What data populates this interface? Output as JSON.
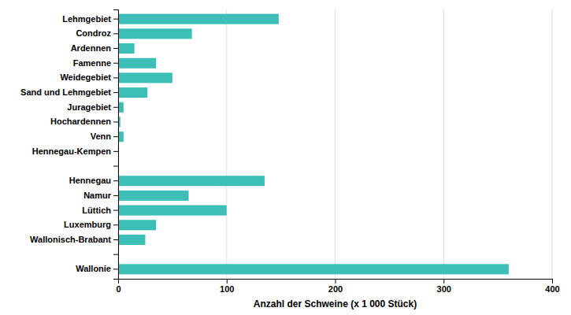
{
  "chart_data": {
    "type": "bar",
    "orientation": "horizontal",
    "categories": [
      "Lehmgebiet",
      "Condroz",
      "Ardennen",
      "Famenne",
      "Weidegebiet",
      "Sand und Lehmgebiet",
      "Juragebiet",
      "Hochardennen",
      "Venn",
      "Hennegau-Kempen",
      null,
      "Hennegau",
      "Namur",
      "Lüttich",
      "Luxemburg",
      "Wallonisch-Brabant",
      null,
      "Wallonie"
    ],
    "values": [
      148,
      68,
      15,
      35,
      50,
      27,
      5,
      2,
      5,
      0.5,
      0,
      135,
      65,
      100,
      35,
      25,
      0,
      360
    ],
    "color": "#3dbfb8",
    "xlabel": "Anzahl der Schweine (x 1 000 Stück)",
    "xlim": [
      0,
      400
    ],
    "xticks": [
      0,
      100,
      200,
      300,
      400
    ],
    "grid": true
  }
}
